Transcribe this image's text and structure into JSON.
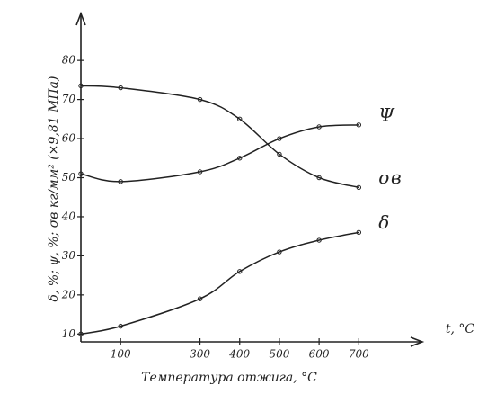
{
  "chart_data": {
    "type": "line",
    "y_label": "δ, %; ψ, %; σв кг/мм² (×9,81 МПа)",
    "x_label": "Температура отжига, °C",
    "x_axis_symbol": "t, °C",
    "xlim": [
      0,
      860
    ],
    "ylim": [
      8,
      92
    ],
    "xticks": [
      100,
      300,
      400,
      500,
      600,
      700
    ],
    "yticks": [
      10,
      20,
      30,
      40,
      50,
      60,
      70,
      80
    ],
    "series": [
      {
        "name": "Ψ",
        "color": "#222222",
        "x": [
          0,
          100,
          300,
          400,
          500,
          600,
          700
        ],
        "values": [
          51,
          49,
          51.5,
          55,
          60,
          63,
          63.5
        ]
      },
      {
        "name": "σв",
        "color": "#222222",
        "x": [
          0,
          100,
          300,
          400,
          500,
          600,
          700
        ],
        "values": [
          73.5,
          73,
          70,
          65,
          56,
          50,
          47.5
        ]
      },
      {
        "name": "δ",
        "color": "#222222",
        "x": [
          0,
          100,
          300,
          400,
          500,
          600,
          700
        ],
        "values": [
          10,
          12,
          19,
          26,
          31,
          34,
          36
        ]
      }
    ]
  }
}
